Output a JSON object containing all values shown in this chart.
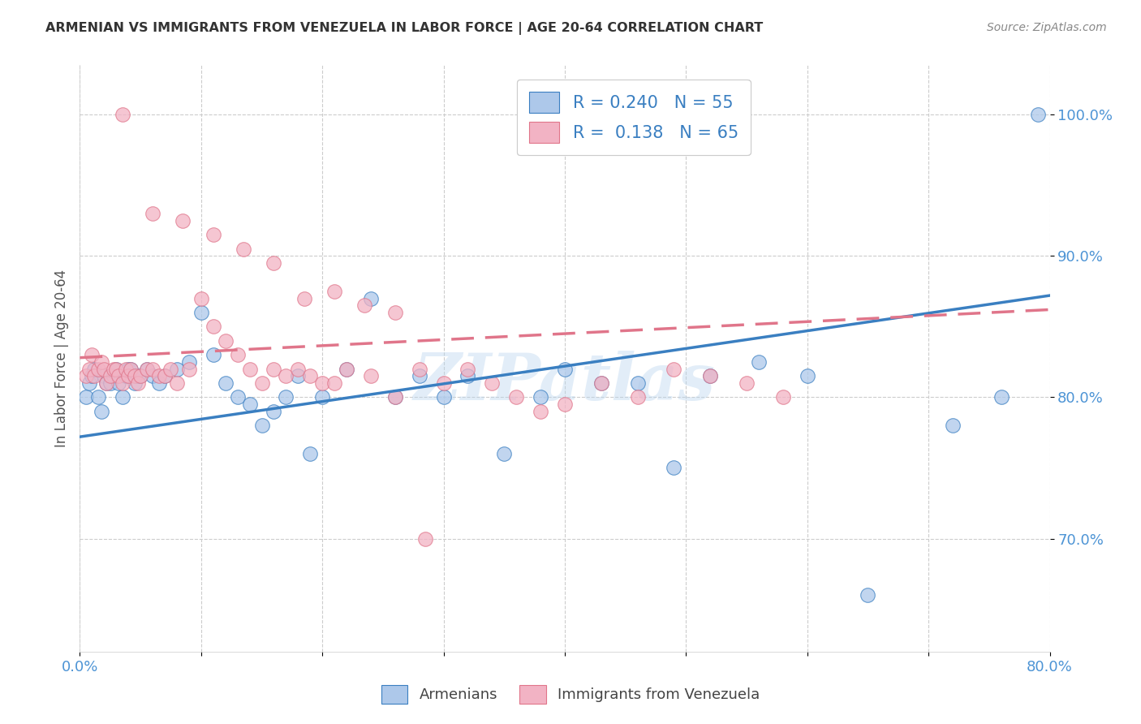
{
  "title": "ARMENIAN VS IMMIGRANTS FROM VENEZUELA IN LABOR FORCE | AGE 20-64 CORRELATION CHART",
  "source": "Source: ZipAtlas.com",
  "ylabel": "In Labor Force | Age 20-64",
  "x_min": 0.0,
  "x_max": 0.8,
  "y_min": 0.62,
  "y_max": 1.035,
  "x_ticks": [
    0.0,
    0.1,
    0.2,
    0.3,
    0.4,
    0.5,
    0.6,
    0.7,
    0.8
  ],
  "x_tick_labels": [
    "0.0%",
    "",
    "",
    "",
    "",
    "",
    "",
    "",
    "80.0%"
  ],
  "y_ticks": [
    0.7,
    0.8,
    0.9,
    1.0
  ],
  "y_tick_labels": [
    "70.0%",
    "80.0%",
    "90.0%",
    "100.0%"
  ],
  "blue_color": "#adc8ea",
  "pink_color": "#f2b3c4",
  "blue_line_color": "#3a7fc1",
  "pink_line_color": "#e0758a",
  "watermark": "ZIPatlas",
  "background_color": "#ffffff",
  "grid_color": "#cccccc",
  "title_color": "#333333",
  "tick_label_color": "#4d94d5",
  "legend_r_color": "#3a7fc1",
  "legend_n_color": "#e05c5c",
  "blue_line_x0": 0.0,
  "blue_line_y0": 0.772,
  "blue_line_x1": 0.8,
  "blue_line_y1": 0.872,
  "pink_line_x0": 0.0,
  "pink_line_y0": 0.828,
  "pink_line_x1": 0.8,
  "pink_line_y1": 0.862,
  "blue_x": [
    0.005,
    0.008,
    0.01,
    0.012,
    0.015,
    0.018,
    0.02,
    0.022,
    0.025,
    0.028,
    0.03,
    0.032,
    0.035,
    0.038,
    0.04,
    0.042,
    0.045,
    0.048,
    0.05,
    0.055,
    0.06,
    0.065,
    0.07,
    0.08,
    0.09,
    0.1,
    0.11,
    0.12,
    0.13,
    0.14,
    0.15,
    0.16,
    0.17,
    0.18,
    0.19,
    0.2,
    0.22,
    0.24,
    0.26,
    0.28,
    0.3,
    0.32,
    0.35,
    0.38,
    0.4,
    0.43,
    0.46,
    0.49,
    0.52,
    0.56,
    0.6,
    0.65,
    0.72,
    0.76,
    0.79
  ],
  "blue_y": [
    0.8,
    0.81,
    0.815,
    0.82,
    0.8,
    0.79,
    0.815,
    0.81,
    0.81,
    0.815,
    0.82,
    0.81,
    0.8,
    0.815,
    0.82,
    0.82,
    0.81,
    0.815,
    0.815,
    0.82,
    0.815,
    0.81,
    0.815,
    0.82,
    0.825,
    0.86,
    0.83,
    0.81,
    0.8,
    0.795,
    0.78,
    0.79,
    0.8,
    0.815,
    0.76,
    0.8,
    0.82,
    0.87,
    0.8,
    0.815,
    0.8,
    0.815,
    0.76,
    0.8,
    0.82,
    0.81,
    0.81,
    0.75,
    0.815,
    0.825,
    0.815,
    0.66,
    0.78,
    0.8,
    1.0
  ],
  "pink_x": [
    0.005,
    0.008,
    0.01,
    0.012,
    0.015,
    0.018,
    0.02,
    0.022,
    0.025,
    0.028,
    0.03,
    0.032,
    0.035,
    0.038,
    0.04,
    0.042,
    0.045,
    0.048,
    0.05,
    0.055,
    0.06,
    0.065,
    0.07,
    0.075,
    0.08,
    0.09,
    0.1,
    0.11,
    0.12,
    0.13,
    0.14,
    0.15,
    0.16,
    0.17,
    0.18,
    0.19,
    0.2,
    0.21,
    0.22,
    0.24,
    0.26,
    0.28,
    0.3,
    0.32,
    0.34,
    0.36,
    0.38,
    0.4,
    0.43,
    0.46,
    0.49,
    0.52,
    0.55,
    0.58,
    0.035,
    0.06,
    0.085,
    0.11,
    0.135,
    0.16,
    0.185,
    0.21,
    0.235,
    0.26,
    0.285
  ],
  "pink_y": [
    0.815,
    0.82,
    0.83,
    0.815,
    0.82,
    0.825,
    0.82,
    0.81,
    0.815,
    0.82,
    0.82,
    0.815,
    0.81,
    0.82,
    0.815,
    0.82,
    0.815,
    0.81,
    0.815,
    0.82,
    0.82,
    0.815,
    0.815,
    0.82,
    0.81,
    0.82,
    0.87,
    0.85,
    0.84,
    0.83,
    0.82,
    0.81,
    0.82,
    0.815,
    0.82,
    0.815,
    0.81,
    0.81,
    0.82,
    0.815,
    0.8,
    0.82,
    0.81,
    0.82,
    0.81,
    0.8,
    0.79,
    0.795,
    0.81,
    0.8,
    0.82,
    0.815,
    0.81,
    0.8,
    1.0,
    0.93,
    0.925,
    0.915,
    0.905,
    0.895,
    0.87,
    0.875,
    0.865,
    0.86,
    0.7
  ]
}
